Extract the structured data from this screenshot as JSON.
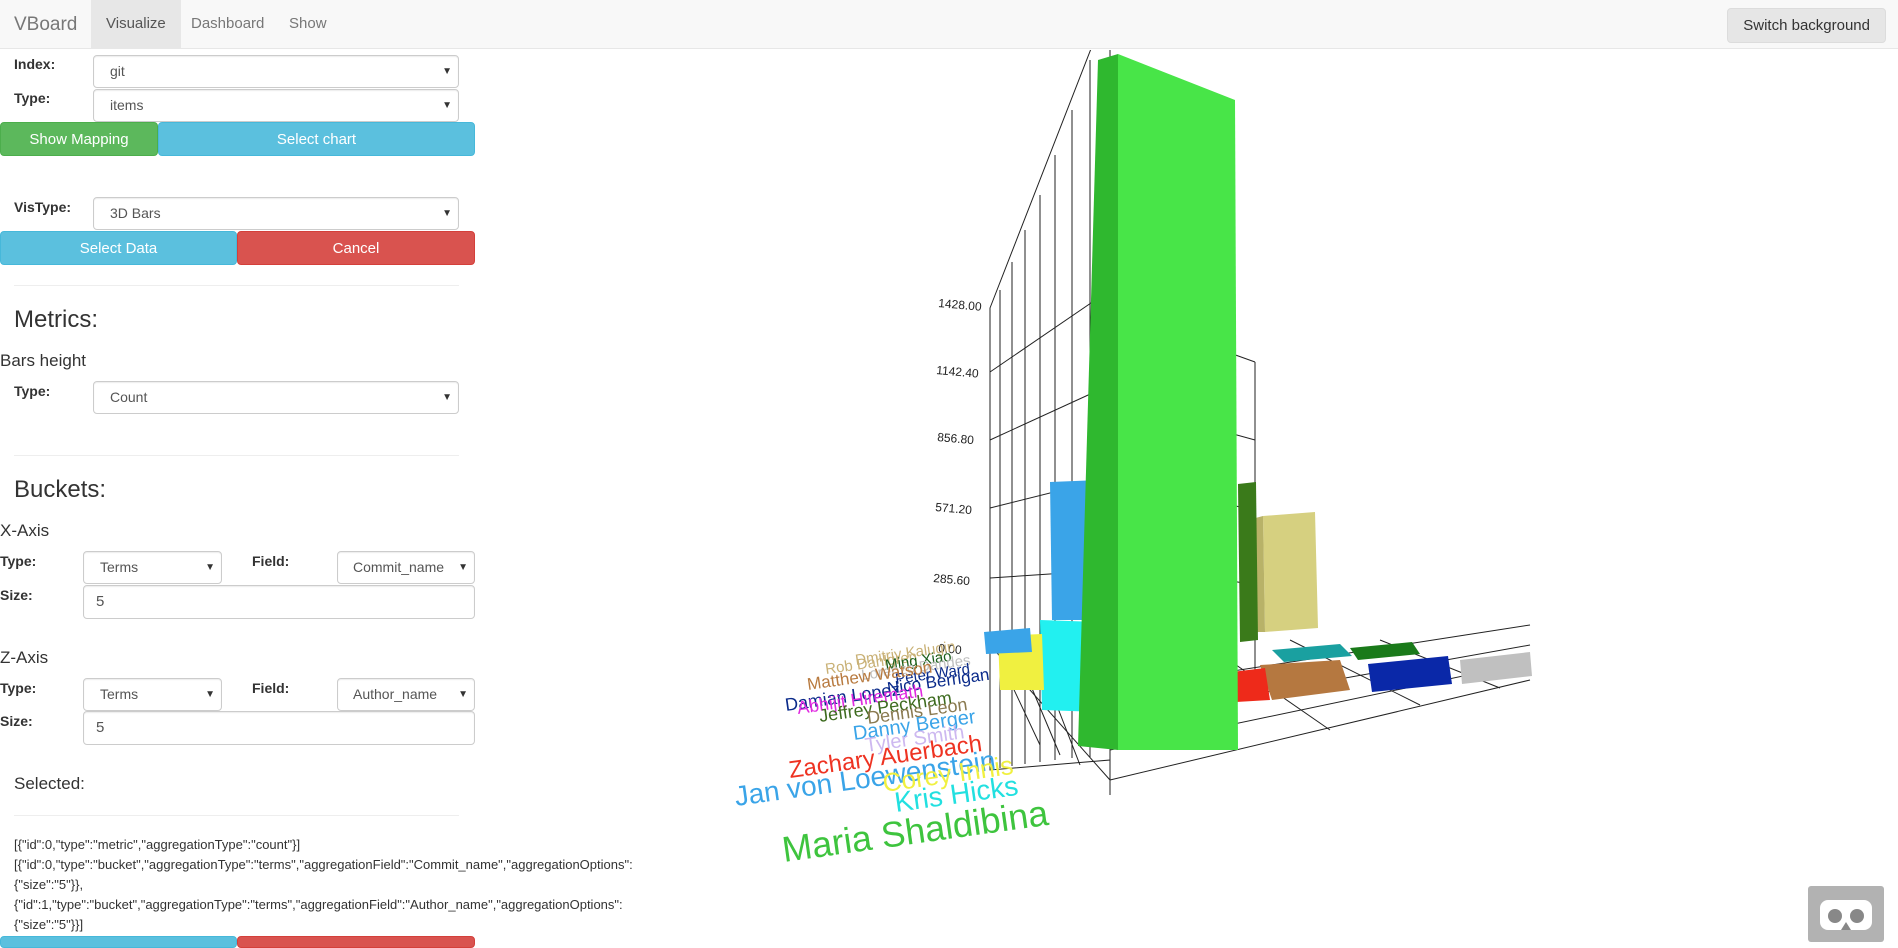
{
  "navbar": {
    "brand": "VBoard",
    "items": [
      "Visualize",
      "Dashboard",
      "Show"
    ],
    "switch_background": "Switch background"
  },
  "form": {
    "index_label": "Index:",
    "index_value": "git",
    "type_label": "Type:",
    "type_value": "items",
    "show_mapping": "Show Mapping",
    "select_chart": "Select chart",
    "vistype_label": "VisType:",
    "vistype_value": "3D Bars",
    "select_data": "Select Data",
    "cancel": "Cancel"
  },
  "metrics": {
    "heading": "Metrics:",
    "bars_height": "Bars height",
    "type_label": "Type:",
    "type_value": "Count"
  },
  "buckets": {
    "heading": "Buckets:",
    "x_axis": {
      "title": "X-Axis",
      "type_label": "Type:",
      "type_value": "Terms",
      "field_label": "Field:",
      "field_value": "Commit_name",
      "size_label": "Size:",
      "size_value": "5"
    },
    "z_axis": {
      "title": "Z-Axis",
      "type_label": "Type:",
      "type_value": "Terms",
      "field_label": "Field:",
      "field_value": "Author_name",
      "size_label": "Size:",
      "size_value": "5"
    }
  },
  "selected": {
    "heading": "Selected:",
    "lines": [
      "[{\"id\":0,\"type\":\"metric\",\"aggregationType\":\"count\"}]",
      "[{\"id\":0,\"type\":\"bucket\",\"aggregationType\":\"terms\",\"aggregationField\":\"Commit_name\",\"aggregationOptions\":",
      "{\"size\":\"5\"}},",
      "{\"id\":1,\"type\":\"bucket\",\"aggregationType\":\"terms\",\"aggregationField\":\"Author_name\",\"aggregationOptions\":",
      "{\"size\":\"5\"}}]"
    ]
  },
  "chart_data": {
    "type": "bar",
    "y_ticks": [
      "1428.00",
      "1142.40",
      "856.80",
      "571.20",
      "285.60",
      "0.00"
    ],
    "labels": [
      {
        "text": "Dmitriy Kalugin",
        "color": "#c9b176"
      },
      {
        "text": "Rob Dahlgren",
        "color": "#c9b176"
      },
      {
        "text": "Ming Xiao",
        "color": "#1a5e1a"
      },
      {
        "text": "Lorenzo Dandes",
        "color": "#c0c0c0"
      },
      {
        "text": "Peter Ward",
        "color": "#0a2a8a"
      },
      {
        "text": "Matthew Watson",
        "color": "#b87a3f"
      },
      {
        "text": "Nico Berrigan",
        "color": "#0a2a8a"
      },
      {
        "text": "Damian Lopez",
        "color": "#0a2a8a"
      },
      {
        "text": "Abhijit Hiremath",
        "color": "#e02ae0"
      },
      {
        "text": "Jeffrey Peckham",
        "color": "#3d6b1f"
      },
      {
        "text": "Dennis Leon",
        "color": "#8a7a50"
      },
      {
        "text": "Danny Berger",
        "color": "#3aa4e8"
      },
      {
        "text": "Tyler Smith",
        "color": "#cdb8f0"
      },
      {
        "text": "Zachary Auerbach",
        "color": "#ee3322"
      },
      {
        "text": "Jan von Loewenstein",
        "color": "#3aa4e8"
      },
      {
        "text": "Corey Innis",
        "color": "#f0f040"
      },
      {
        "text": "Kris Hicks",
        "color": "#22e0e0"
      },
      {
        "text": "Maria Shaldibina",
        "color": "#3ec43e"
      }
    ]
  },
  "colors": {
    "green_bar": "#48e548",
    "blue_bar": "#3aa4e8",
    "cyan_bar": "#22f0f0",
    "khaki_bar": "#d6d080",
    "darkgreen_bar": "#3a7a1a"
  }
}
